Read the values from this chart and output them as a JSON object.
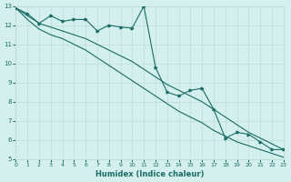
{
  "xlabel": "Humidex (Indice chaleur)",
  "xlim": [
    0,
    23
  ],
  "ylim": [
    5,
    13
  ],
  "yticks": [
    5,
    6,
    7,
    8,
    9,
    10,
    11,
    12,
    13
  ],
  "xticks": [
    0,
    1,
    2,
    3,
    4,
    5,
    6,
    7,
    8,
    9,
    10,
    11,
    12,
    13,
    14,
    15,
    16,
    17,
    18,
    19,
    20,
    21,
    22,
    23
  ],
  "bg_color": "#d4f0ee",
  "line_color": "#1a6b64",
  "grid_color": "#c0ddd9",
  "line1_x": [
    0,
    1,
    2,
    3,
    4,
    5,
    6,
    7,
    8,
    9,
    10,
    11,
    12,
    13,
    14,
    15,
    16,
    17,
    18,
    19,
    20,
    21,
    22,
    23
  ],
  "line1_y": [
    12.9,
    12.6,
    12.1,
    12.5,
    12.2,
    12.3,
    12.3,
    11.7,
    12.0,
    11.9,
    11.85,
    13.0,
    9.8,
    8.5,
    8.3,
    8.6,
    8.7,
    7.6,
    6.1,
    6.4,
    6.3,
    5.9,
    5.5,
    5.5
  ],
  "line2_x": [
    0,
    1,
    2,
    3,
    4,
    5,
    6,
    7,
    8,
    9,
    10,
    11,
    12,
    13,
    14,
    15,
    16,
    17,
    18,
    19,
    20,
    21,
    22,
    23
  ],
  "line2_y": [
    12.9,
    12.5,
    12.1,
    11.9,
    11.7,
    11.5,
    11.3,
    11.0,
    10.7,
    10.4,
    10.1,
    9.7,
    9.3,
    8.9,
    8.6,
    8.3,
    8.0,
    7.6,
    7.2,
    6.8,
    6.4,
    6.1,
    5.8,
    5.5
  ],
  "line3_x": [
    0,
    1,
    2,
    3,
    4,
    5,
    6,
    7,
    8,
    9,
    10,
    11,
    12,
    13,
    14,
    15,
    16,
    17,
    18,
    19,
    20,
    21,
    22,
    23
  ],
  "line3_y": [
    12.9,
    12.3,
    11.8,
    11.5,
    11.3,
    11.0,
    10.7,
    10.3,
    9.9,
    9.5,
    9.1,
    8.7,
    8.3,
    7.9,
    7.5,
    7.2,
    6.9,
    6.5,
    6.2,
    5.9,
    5.7,
    5.5,
    5.3,
    5.1
  ]
}
